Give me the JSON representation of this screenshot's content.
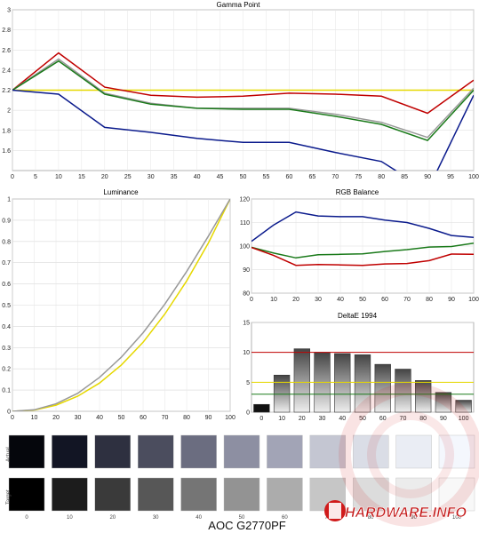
{
  "footer": {
    "model": "AOC G2770PF"
  },
  "logo": {
    "text": "HARDWARE.INFO",
    "accent": "#d01b1b"
  },
  "swatches": {
    "row_labels": [
      "Actual",
      "Target"
    ],
    "tick_labels": [
      "0",
      "10",
      "20",
      "30",
      "40",
      "50",
      "60",
      "70",
      "80",
      "90",
      "100"
    ],
    "actual_colors": [
      "#05060c",
      "#121524",
      "#2e3040",
      "#4b4d5e",
      "#6b6d80",
      "#8d8fa2",
      "#a2a4b6",
      "#c4c6d2",
      "#dadde6",
      "#eaedf4",
      "#f4f7fd"
    ],
    "target_colors": [
      "#000000",
      "#1c1c1c",
      "#3a3a3a",
      "#575757",
      "#757575",
      "#939393",
      "#acacac",
      "#c6c6c6",
      "#dcdcdc",
      "#ececec",
      "#f8f8f8"
    ]
  },
  "chart_data": [
    {
      "type": "line",
      "title": "Gamma Point",
      "xlabel": "",
      "ylabel": "",
      "xlim": [
        0,
        100
      ],
      "ylim": [
        1.4,
        3.0
      ],
      "xticks": [
        "0",
        "5",
        "10",
        "15",
        "20",
        "25",
        "30",
        "35",
        "40",
        "45",
        "50",
        "55",
        "60",
        "65",
        "70",
        "75",
        "80",
        "85",
        "90",
        "95",
        "100"
      ],
      "yticks": [
        "1.6",
        "1.8",
        "2",
        "2.2",
        "2.4",
        "2.6",
        "2.8",
        "3"
      ],
      "grid": true,
      "x": [
        0,
        10,
        20,
        30,
        40,
        50,
        60,
        70,
        80,
        90,
        100
      ],
      "series": [
        {
          "values": [
            2.2,
            2.2,
            2.2,
            2.2,
            2.2,
            2.2,
            2.2,
            2.2,
            2.2,
            2.2,
            2.2
          ],
          "color": "#e6d800"
        },
        {
          "values": [
            2.2,
            2.57,
            2.23,
            2.15,
            2.13,
            2.14,
            2.17,
            2.16,
            2.14,
            1.97,
            2.3
          ],
          "color": "#c00000"
        },
        {
          "values": [
            2.2,
            2.51,
            2.17,
            2.07,
            2.02,
            2.02,
            2.02,
            1.96,
            1.88,
            1.73,
            2.22
          ],
          "color": "#999999"
        },
        {
          "values": [
            2.2,
            2.49,
            2.16,
            2.06,
            2.02,
            2.01,
            2.01,
            1.94,
            1.86,
            1.7,
            2.2
          ],
          "color": "#1a7a1a"
        },
        {
          "values": [
            2.2,
            2.16,
            1.83,
            1.78,
            1.72,
            1.68,
            1.68,
            1.58,
            1.49,
            1.2,
            2.15
          ],
          "color": "#0a1a8c"
        }
      ]
    },
    {
      "type": "line",
      "title": "Luminance",
      "xlabel": "",
      "ylabel": "",
      "xlim": [
        0,
        100
      ],
      "ylim": [
        0,
        1
      ],
      "xticks": [
        "0",
        "10",
        "20",
        "30",
        "40",
        "50",
        "60",
        "70",
        "80",
        "90",
        "100"
      ],
      "yticks": [
        "0",
        "0.1",
        "0.2",
        "0.3",
        "0.4",
        "0.5",
        "0.6",
        "0.7",
        "0.8",
        "0.9",
        "1"
      ],
      "grid": true,
      "x": [
        0,
        10,
        20,
        30,
        40,
        50,
        60,
        70,
        80,
        90,
        100
      ],
      "series": [
        {
          "values": [
            0,
            0.006,
            0.029,
            0.071,
            0.133,
            0.218,
            0.325,
            0.458,
            0.614,
            0.793,
            1.0
          ],
          "color": "#e6d800"
        },
        {
          "values": [
            0,
            0.007,
            0.035,
            0.085,
            0.16,
            0.255,
            0.37,
            0.505,
            0.658,
            0.825,
            1.0
          ],
          "color": "#999999"
        }
      ]
    },
    {
      "type": "line",
      "title": "RGB Balance",
      "xlabel": "",
      "ylabel": "",
      "xlim": [
        0,
        100
      ],
      "ylim": [
        80,
        120
      ],
      "xticks": [
        "0",
        "10",
        "20",
        "30",
        "40",
        "50",
        "60",
        "70",
        "80",
        "90",
        "100"
      ],
      "yticks": [
        "80",
        "90",
        "100",
        "110",
        "120"
      ],
      "grid": true,
      "x": [
        0,
        10,
        20,
        30,
        40,
        50,
        60,
        70,
        80,
        90,
        100
      ],
      "series": [
        {
          "values": [
            102,
            109,
            114.5,
            112.8,
            112.5,
            112.5,
            111,
            110,
            107.5,
            104.5,
            103.7
          ],
          "color": "#0a1a8c"
        },
        {
          "values": [
            99.5,
            97,
            95,
            96.3,
            96.5,
            96.7,
            97.7,
            98.5,
            99.6,
            99.8,
            101.2
          ],
          "color": "#1a7a1a"
        },
        {
          "values": [
            99.4,
            96,
            91.8,
            92.2,
            92,
            91.8,
            92.4,
            92.6,
            93.8,
            96.6,
            96.5
          ],
          "color": "#c00000"
        }
      ]
    },
    {
      "type": "bar",
      "title": "DeltaE 1994",
      "xlabel": "",
      "ylabel": "",
      "ylim": [
        0,
        15
      ],
      "categories": [
        "0",
        "10",
        "20",
        "30",
        "40",
        "50",
        "60",
        "70",
        "80",
        "90",
        "100"
      ],
      "yticks": [
        "0",
        "5",
        "10",
        "15"
      ],
      "grid": true,
      "values": [
        1.3,
        6.2,
        10.6,
        10.0,
        9.8,
        9.6,
        8.0,
        7.2,
        5.3,
        3.3,
        2.0
      ],
      "reference_lines": [
        {
          "value": 10,
          "color": "#c00000"
        },
        {
          "value": 5,
          "color": "#e6d800"
        },
        {
          "value": 3,
          "color": "#1a7a1a"
        }
      ]
    }
  ]
}
